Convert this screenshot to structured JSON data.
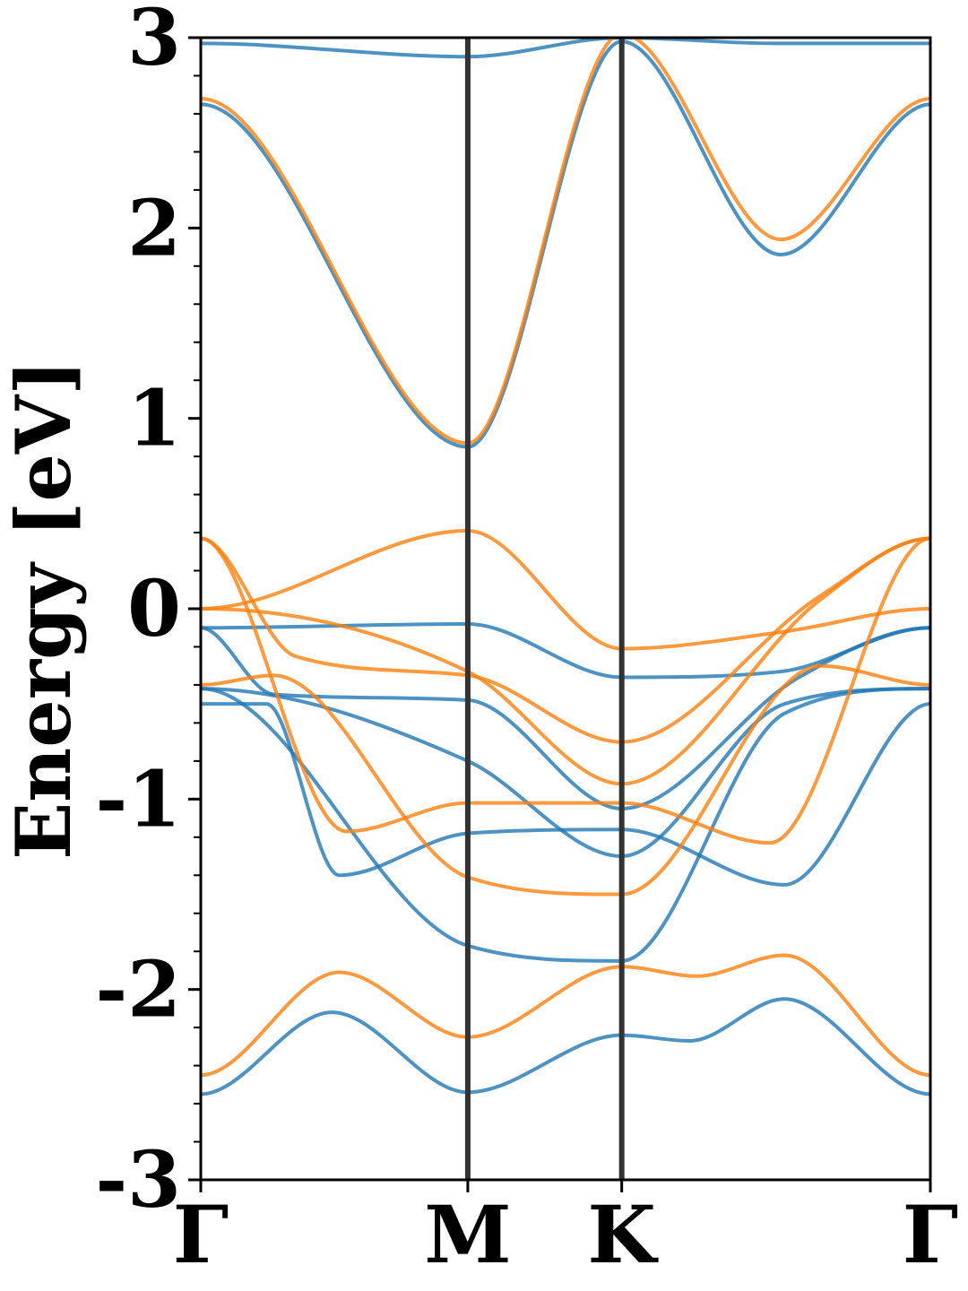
{
  "chart_data": {
    "type": "line",
    "title": "",
    "xlabel": "",
    "ylabel": "Energy [eV]",
    "ylim": [
      -3,
      3
    ],
    "xlim": [
      0,
      1
    ],
    "grid": false,
    "legend": "none",
    "yticks": [
      {
        "value": 3,
        "label": "3"
      },
      {
        "value": 2,
        "label": "2"
      },
      {
        "value": 1,
        "label": "1"
      },
      {
        "value": 0,
        "label": "0"
      },
      {
        "value": -1,
        "label": "-1"
      },
      {
        "value": -2,
        "label": "-2"
      },
      {
        "value": -3,
        "label": "-3"
      }
    ],
    "minor_ytick_step": 0.2,
    "kpoints": [
      {
        "label": "Γ",
        "x": 0
      },
      {
        "label": "M",
        "x": 0.366
      },
      {
        "label": "K",
        "x": 0.577
      },
      {
        "label": "Γ",
        "x": 1
      }
    ],
    "high_symmetry_lines": [
      0.366,
      0.577
    ],
    "colors": {
      "spin_up": "#1f77b4",
      "spin_down": "#ff7f0e",
      "symmetry_line": "#333333",
      "axes": "#000000"
    },
    "series": [
      {
        "group": "spin_up",
        "x": [
          0,
          0.366,
          0.577,
          0.785,
          1
        ],
        "y": [
          2.97,
          2.9,
          3.0,
          2.97,
          2.97
        ]
      },
      {
        "group": "spin_up",
        "x": [
          0,
          0.366,
          0.577,
          0.795,
          1
        ],
        "y": [
          2.65,
          0.85,
          2.98,
          1.86,
          2.65
        ]
      },
      {
        "group": "spin_up",
        "x": [
          0,
          0.366,
          0.577,
          0.795,
          1
        ],
        "y": [
          -0.1,
          -0.08,
          -0.36,
          -0.33,
          -0.1
        ]
      },
      {
        "group": "spin_up",
        "x": [
          0,
          0.1,
          0.366,
          0.577,
          0.82,
          1
        ],
        "y": [
          -0.1,
          -0.45,
          -0.48,
          -1.05,
          -0.36,
          -0.1
        ]
      },
      {
        "group": "spin_up",
        "x": [
          0,
          0.366,
          0.577,
          0.8,
          1
        ],
        "y": [
          -0.42,
          -0.8,
          -1.3,
          -0.5,
          -0.42
        ]
      },
      {
        "group": "spin_up",
        "x": [
          0,
          0.09,
          0.19,
          0.366,
          0.577,
          0.8,
          1
        ],
        "y": [
          -0.5,
          -0.5,
          -1.4,
          -1.18,
          -1.16,
          -1.45,
          -0.5
        ]
      },
      {
        "group": "spin_up",
        "x": [
          0,
          0.366,
          0.577,
          0.8,
          1
        ],
        "y": [
          -0.42,
          -1.77,
          -1.85,
          -0.55,
          -0.42
        ]
      },
      {
        "group": "spin_up",
        "x": [
          0,
          0.18,
          0.366,
          0.577,
          0.67,
          0.8,
          1
        ],
        "y": [
          -2.55,
          -2.12,
          -2.54,
          -2.24,
          -2.27,
          -2.05,
          -2.55
        ]
      },
      {
        "group": "spin_down",
        "x": [
          0,
          0.366,
          0.577,
          0.795,
          1
        ],
        "y": [
          2.68,
          0.87,
          3.02,
          1.94,
          2.68
        ]
      },
      {
        "group": "spin_down",
        "x": [
          0,
          0.366,
          0.577,
          0.8,
          1
        ],
        "y": [
          0.0,
          0.41,
          -0.21,
          -0.12,
          0.0
        ]
      },
      {
        "group": "spin_down",
        "x": [
          0,
          0.13,
          0.366,
          0.577,
          0.85,
          1
        ],
        "y": [
          0.37,
          -0.25,
          -0.35,
          -0.7,
          0.07,
          0.37
        ]
      },
      {
        "group": "spin_down",
        "x": [
          0,
          0.366,
          0.577,
          0.85,
          1
        ],
        "y": [
          0.0,
          -0.33,
          -0.92,
          0.05,
          0.37
        ]
      },
      {
        "group": "spin_down",
        "x": [
          0,
          0.1,
          0.366,
          0.577,
          0.85,
          1
        ],
        "y": [
          -0.4,
          -0.35,
          -1.41,
          -1.5,
          -0.3,
          -0.4
        ]
      },
      {
        "group": "spin_down",
        "x": [
          0,
          0.2,
          0.366,
          0.577,
          0.78,
          1
        ],
        "y": [
          0.37,
          -1.17,
          -1.02,
          -1.02,
          -1.23,
          0.37
        ]
      },
      {
        "group": "spin_down",
        "x": [
          0,
          0.19,
          0.366,
          0.577,
          0.68,
          0.8,
          1
        ],
        "y": [
          -2.45,
          -1.91,
          -2.25,
          -1.88,
          -1.93,
          -1.82,
          -2.45
        ]
      }
    ]
  }
}
